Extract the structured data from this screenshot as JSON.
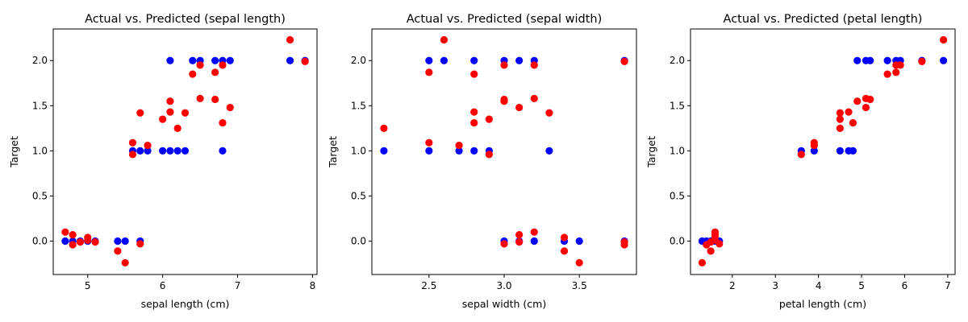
{
  "chart_data": [
    {
      "type": "scatter",
      "title": "Actual vs. Predicted (sepal length)",
      "xlabel": "sepal length (cm)",
      "ylabel": "Target",
      "xlim": [
        4.54,
        8.06
      ],
      "ylim": [
        -0.37,
        2.35
      ],
      "xticks": [
        5,
        6,
        7,
        8
      ],
      "xtick_labels": [
        "5",
        "6",
        "7",
        "8"
      ],
      "yticks": [
        0.0,
        0.5,
        1.0,
        1.5,
        2.0
      ],
      "ytick_labels": [
        "0.0",
        "0.5",
        "1.0",
        "1.5",
        "2.0"
      ],
      "series": [
        {
          "color": "#0000ff",
          "points": [
            [
              4.7,
              0
            ],
            [
              4.8,
              0
            ],
            [
              4.9,
              0
            ],
            [
              5.0,
              0
            ],
            [
              5.1,
              0
            ],
            [
              5.4,
              0
            ],
            [
              5.5,
              0
            ],
            [
              5.7,
              0
            ],
            [
              5.6,
              1
            ],
            [
              5.7,
              1
            ],
            [
              5.8,
              1
            ],
            [
              6.0,
              1
            ],
            [
              6.1,
              1
            ],
            [
              6.2,
              1
            ],
            [
              6.3,
              1
            ],
            [
              6.8,
              1
            ],
            [
              6.1,
              2
            ],
            [
              6.4,
              2
            ],
            [
              6.5,
              2
            ],
            [
              6.7,
              2
            ],
            [
              6.8,
              2
            ],
            [
              6.9,
              2
            ],
            [
              7.7,
              2
            ],
            [
              7.9,
              2
            ]
          ]
        },
        {
          "color": "#ff0000",
          "points": [
            [
              4.7,
              0.1
            ],
            [
              4.8,
              0.07
            ],
            [
              4.8,
              -0.04
            ],
            [
              4.9,
              -0.01
            ],
            [
              5.0,
              0.04
            ],
            [
              5.0,
              0.01
            ],
            [
              5.1,
              -0.01
            ],
            [
              5.4,
              -0.11
            ],
            [
              5.5,
              -0.24
            ],
            [
              5.7,
              -0.03
            ],
            [
              5.6,
              1.09
            ],
            [
              5.6,
              0.96
            ],
            [
              5.7,
              1.42
            ],
            [
              5.8,
              1.06
            ],
            [
              6.0,
              1.35
            ],
            [
              6.1,
              1.55
            ],
            [
              6.1,
              1.43
            ],
            [
              6.2,
              1.25
            ],
            [
              6.3,
              1.42
            ],
            [
              6.4,
              1.85
            ],
            [
              6.5,
              1.58
            ],
            [
              6.5,
              1.95
            ],
            [
              6.7,
              1.87
            ],
            [
              6.7,
              1.57
            ],
            [
              6.8,
              1.31
            ],
            [
              6.8,
              1.95
            ],
            [
              6.9,
              1.48
            ],
            [
              7.7,
              2.23
            ],
            [
              7.9,
              1.99
            ]
          ]
        }
      ]
    },
    {
      "type": "scatter",
      "title": "Actual vs. Predicted (sepal width)",
      "xlabel": "sepal width (cm)",
      "ylabel": "Target",
      "xlim": [
        2.12,
        3.88
      ],
      "ylim": [
        -0.37,
        2.35
      ],
      "xticks": [
        2.5,
        3.0,
        3.5
      ],
      "xtick_labels": [
        "2.5",
        "3.0",
        "3.5"
      ],
      "yticks": [
        0.0,
        0.5,
        1.0,
        1.5,
        2.0
      ],
      "ytick_labels": [
        "0.0",
        "0.5",
        "1.0",
        "1.5",
        "2.0"
      ],
      "series": [
        {
          "color": "#0000ff",
          "points": [
            [
              2.2,
              1
            ],
            [
              2.5,
              1
            ],
            [
              2.7,
              1
            ],
            [
              2.8,
              1
            ],
            [
              2.9,
              1
            ],
            [
              3.3,
              1
            ],
            [
              2.5,
              2
            ],
            [
              2.6,
              2
            ],
            [
              2.8,
              2
            ],
            [
              3.0,
              2
            ],
            [
              3.1,
              2
            ],
            [
              3.2,
              2
            ],
            [
              3.8,
              2
            ],
            [
              3.0,
              0
            ],
            [
              3.1,
              0
            ],
            [
              3.2,
              0
            ],
            [
              3.4,
              0
            ],
            [
              3.5,
              0
            ],
            [
              3.8,
              0
            ]
          ]
        },
        {
          "color": "#ff0000",
          "points": [
            [
              2.2,
              1.25
            ],
            [
              2.5,
              1.09
            ],
            [
              2.5,
              1.87
            ],
            [
              2.6,
              2.23
            ],
            [
              2.7,
              1.06
            ],
            [
              2.8,
              1.43
            ],
            [
              2.8,
              1.31
            ],
            [
              2.8,
              1.85
            ],
            [
              2.9,
              1.35
            ],
            [
              2.9,
              0.96
            ],
            [
              3.0,
              1.95
            ],
            [
              3.0,
              1.57
            ],
            [
              3.0,
              1.55
            ],
            [
              3.0,
              -0.03
            ],
            [
              3.1,
              1.48
            ],
            [
              3.1,
              0.07
            ],
            [
              3.1,
              -0.01
            ],
            [
              3.2,
              1.58
            ],
            [
              3.2,
              1.95
            ],
            [
              3.2,
              0.1
            ],
            [
              3.3,
              1.42
            ],
            [
              3.4,
              0.04
            ],
            [
              3.4,
              -0.11
            ],
            [
              3.5,
              -0.24
            ],
            [
              3.8,
              1.99
            ],
            [
              3.8,
              -0.01
            ],
            [
              3.8,
              -0.04
            ]
          ]
        }
      ]
    },
    {
      "type": "scatter",
      "title": "Actual vs. Predicted (petal length)",
      "xlabel": "petal length (cm)",
      "ylabel": "Target",
      "xlim": [
        1.03,
        7.17
      ],
      "ylim": [
        -0.37,
        2.35
      ],
      "xticks": [
        2,
        3,
        4,
        5,
        6,
        7
      ],
      "xtick_labels": [
        "2",
        "3",
        "4",
        "5",
        "6",
        "7"
      ],
      "yticks": [
        0.0,
        0.5,
        1.0,
        1.5,
        2.0
      ],
      "ytick_labels": [
        "0.0",
        "0.5",
        "1.0",
        "1.5",
        "2.0"
      ],
      "series": [
        {
          "color": "#0000ff",
          "points": [
            [
              1.3,
              0
            ],
            [
              1.4,
              0
            ],
            [
              1.5,
              0
            ],
            [
              1.6,
              0
            ],
            [
              1.7,
              0
            ],
            [
              3.6,
              1
            ],
            [
              3.9,
              1
            ],
            [
              4.5,
              1
            ],
            [
              4.7,
              1
            ],
            [
              4.8,
              1
            ],
            [
              4.9,
              2
            ],
            [
              5.1,
              2
            ],
            [
              5.2,
              2
            ],
            [
              5.6,
              2
            ],
            [
              5.8,
              2
            ],
            [
              5.9,
              2
            ],
            [
              6.4,
              2
            ],
            [
              6.9,
              2
            ]
          ]
        },
        {
          "color": "#ff0000",
          "points": [
            [
              1.3,
              -0.24
            ],
            [
              1.4,
              -0.04
            ],
            [
              1.5,
              -0.11
            ],
            [
              1.5,
              -0.01
            ],
            [
              1.6,
              0.1
            ],
            [
              1.6,
              0.07
            ],
            [
              1.6,
              0.04
            ],
            [
              1.6,
              0.01
            ],
            [
              1.7,
              -0.03
            ],
            [
              3.6,
              0.96
            ],
            [
              3.9,
              1.09
            ],
            [
              3.9,
              1.06
            ],
            [
              4.5,
              1.42
            ],
            [
              4.5,
              1.35
            ],
            [
              4.5,
              1.25
            ],
            [
              4.7,
              1.43
            ],
            [
              4.8,
              1.31
            ],
            [
              4.9,
              1.55
            ],
            [
              5.1,
              1.58
            ],
            [
              5.1,
              1.48
            ],
            [
              5.2,
              1.57
            ],
            [
              5.6,
              1.85
            ],
            [
              5.8,
              1.95
            ],
            [
              5.8,
              1.87
            ],
            [
              5.9,
              1.95
            ],
            [
              6.4,
              1.99
            ],
            [
              6.9,
              2.23
            ]
          ]
        }
      ]
    }
  ]
}
